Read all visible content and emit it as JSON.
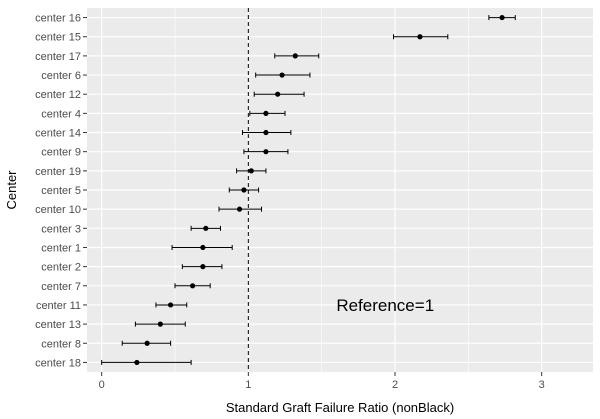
{
  "chart_data": {
    "type": "scatter",
    "subtype": "forest-plot",
    "title": "",
    "xlabel": "Standard Graft Failure Ratio (nonBlack)",
    "ylabel": "Center",
    "xlim": [
      -0.1,
      3.35
    ],
    "xticks": [
      0,
      1,
      2,
      3
    ],
    "reference_line": 1,
    "annotation": "Reference=1",
    "grid": true,
    "legend": "none",
    "colors": {
      "panel_background": "#ebebeb",
      "grid": "#ffffff",
      "point": "#000000",
      "reference_line": "#000000"
    },
    "points": [
      {
        "center": "center 16",
        "estimate": 2.73,
        "lower": 2.64,
        "upper": 2.82
      },
      {
        "center": "center 15",
        "estimate": 2.17,
        "lower": 1.99,
        "upper": 2.36
      },
      {
        "center": "center 17",
        "estimate": 1.32,
        "lower": 1.18,
        "upper": 1.48
      },
      {
        "center": "center 6",
        "estimate": 1.23,
        "lower": 1.05,
        "upper": 1.42
      },
      {
        "center": "center 12",
        "estimate": 1.2,
        "lower": 1.04,
        "upper": 1.38
      },
      {
        "center": "center 4",
        "estimate": 1.12,
        "lower": 1.01,
        "upper": 1.25
      },
      {
        "center": "center 14",
        "estimate": 1.12,
        "lower": 0.96,
        "upper": 1.29
      },
      {
        "center": "center 9",
        "estimate": 1.12,
        "lower": 0.97,
        "upper": 1.27
      },
      {
        "center": "center 19",
        "estimate": 1.02,
        "lower": 0.92,
        "upper": 1.12
      },
      {
        "center": "center 5",
        "estimate": 0.97,
        "lower": 0.87,
        "upper": 1.07
      },
      {
        "center": "center 10",
        "estimate": 0.94,
        "lower": 0.8,
        "upper": 1.09
      },
      {
        "center": "center 3",
        "estimate": 0.71,
        "lower": 0.61,
        "upper": 0.81
      },
      {
        "center": "center 1",
        "estimate": 0.69,
        "lower": 0.48,
        "upper": 0.89
      },
      {
        "center": "center 2",
        "estimate": 0.69,
        "lower": 0.55,
        "upper": 0.82
      },
      {
        "center": "center 7",
        "estimate": 0.62,
        "lower": 0.5,
        "upper": 0.74
      },
      {
        "center": "center 11",
        "estimate": 0.47,
        "lower": 0.37,
        "upper": 0.58
      },
      {
        "center": "center 13",
        "estimate": 0.4,
        "lower": 0.23,
        "upper": 0.57
      },
      {
        "center": "center 8",
        "estimate": 0.31,
        "lower": 0.14,
        "upper": 0.47
      },
      {
        "center": "center 18",
        "estimate": 0.24,
        "lower": 0.0,
        "upper": 0.61
      }
    ]
  }
}
